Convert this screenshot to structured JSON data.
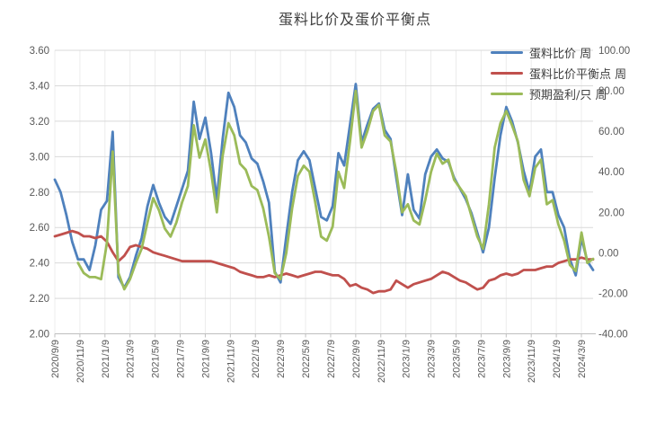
{
  "title": "蛋料比价及蛋价平衡点",
  "legend": [
    {
      "label": "蛋料比价 周",
      "color": "#4F81BD"
    },
    {
      "label": "蛋料比价平衡点 周",
      "color": "#C0504D"
    },
    {
      "label": "预期盈利/只 周",
      "color": "#9BBB59"
    }
  ],
  "colors": {
    "series_ratio": "#4F81BD",
    "series_breakeven": "#C0504D",
    "series_profit": "#9BBB59",
    "gridline": "#D9D9D9",
    "vertical_gridline": "#ECECEC",
    "axis_line": "#BFBFBF",
    "axis_text": "#595959",
    "title_text": "#3F3F3F"
  },
  "chart_data": {
    "type": "line",
    "title": "蛋料比价及蛋价平衡点",
    "x_tick_labels": [
      "2020/9/9",
      "2020/11/9",
      "2021/1/9",
      "2021/3/9",
      "2021/5/9",
      "2021/7/9",
      "2021/9/9",
      "2021/11/9",
      "2022/1/9",
      "2022/3/9",
      "2022/5/9",
      "2022/7/9",
      "2022/9/9",
      "2022/11/9",
      "2023/1/9",
      "2023/3/9",
      "2023/5/9",
      "2023/7/9",
      "2023/9/9",
      "2023/11/9",
      "2024/1/9",
      "2024/3/9"
    ],
    "left_axis": {
      "min": 2.0,
      "max": 3.6,
      "tick_labels": [
        "3.60",
        "3.40",
        "3.20",
        "3.00",
        "2.80",
        "2.60",
        "2.40",
        "2.20",
        "2.00"
      ]
    },
    "right_axis": {
      "min": -40,
      "max": 100,
      "tick_labels": [
        "100.00",
        "80.00",
        "60.00",
        "40.00",
        "20.00",
        "0.00",
        "-20.00",
        "-40.00"
      ]
    },
    "grid": true,
    "legend_position": "top-right",
    "sampling": "weekly series shown, digitized at ~2-week steps from 2020/9/9 to 2024/4",
    "series": [
      {
        "name": "蛋料比价 周",
        "axis": "left",
        "color": "#4F81BD",
        "values": [
          2.87,
          2.8,
          2.67,
          2.52,
          2.42,
          2.42,
          2.36,
          2.5,
          2.7,
          2.75,
          3.14,
          2.32,
          2.26,
          2.32,
          2.44,
          2.54,
          2.72,
          2.84,
          2.74,
          2.66,
          2.62,
          2.72,
          2.82,
          2.92,
          3.31,
          3.1,
          3.22,
          3.02,
          2.76,
          3.1,
          3.36,
          3.28,
          3.12,
          3.08,
          2.99,
          2.96,
          2.86,
          2.74,
          2.35,
          2.29,
          2.55,
          2.8,
          2.98,
          3.03,
          2.98,
          2.82,
          2.66,
          2.64,
          2.72,
          3.02,
          2.95,
          3.18,
          3.41,
          3.08,
          3.18,
          3.27,
          3.3,
          3.15,
          3.1,
          2.88,
          2.67,
          2.9,
          2.7,
          2.65,
          2.9,
          3.0,
          3.04,
          2.99,
          2.97,
          2.88,
          2.82,
          2.76,
          2.68,
          2.57,
          2.46,
          2.6,
          2.88,
          3.12,
          3.28,
          3.2,
          3.08,
          2.92,
          2.8,
          3.0,
          3.04,
          2.8,
          2.8,
          2.67,
          2.6,
          2.42,
          2.33,
          2.54,
          2.41,
          2.36
        ]
      },
      {
        "name": "蛋料比价平衡点 周",
        "axis": "left",
        "color": "#C0504D",
        "values": [
          2.55,
          2.56,
          2.57,
          2.58,
          2.57,
          2.55,
          2.55,
          2.54,
          2.55,
          2.52,
          2.46,
          2.41,
          2.44,
          2.49,
          2.5,
          2.49,
          2.48,
          2.46,
          2.45,
          2.44,
          2.43,
          2.42,
          2.41,
          2.41,
          2.41,
          2.41,
          2.41,
          2.41,
          2.4,
          2.39,
          2.38,
          2.37,
          2.35,
          2.34,
          2.33,
          2.32,
          2.32,
          2.33,
          2.32,
          2.33,
          2.34,
          2.33,
          2.32,
          2.33,
          2.34,
          2.35,
          2.35,
          2.34,
          2.33,
          2.33,
          2.31,
          2.27,
          2.28,
          2.26,
          2.25,
          2.23,
          2.24,
          2.24,
          2.25,
          2.3,
          2.28,
          2.26,
          2.28,
          2.29,
          2.3,
          2.31,
          2.33,
          2.35,
          2.34,
          2.32,
          2.3,
          2.29,
          2.27,
          2.25,
          2.26,
          2.3,
          2.31,
          2.33,
          2.34,
          2.33,
          2.34,
          2.36,
          2.36,
          2.36,
          2.37,
          2.38,
          2.38,
          2.4,
          2.41,
          2.42,
          2.42,
          2.43,
          2.42,
          2.42
        ]
      },
      {
        "name": "预期盈利/只 周",
        "axis": "right",
        "color": "#9BBB59",
        "values": [
          null,
          null,
          null,
          null,
          -5,
          -10,
          -12,
          -12,
          -13,
          5,
          50,
          -10,
          -18,
          -13,
          -5,
          2,
          15,
          27,
          21,
          12,
          8,
          15,
          25,
          33,
          63,
          47,
          56,
          40,
          20,
          48,
          64,
          58,
          44,
          41,
          33,
          31,
          22,
          8,
          -10,
          -13,
          0,
          22,
          38,
          43,
          40,
          25,
          8,
          6,
          13,
          40,
          32,
          55,
          80,
          52,
          60,
          70,
          73,
          58,
          55,
          40,
          20,
          24,
          16,
          14,
          26,
          40,
          49,
          44,
          46,
          36,
          32,
          28,
          18,
          8,
          2,
          24,
          52,
          64,
          70,
          63,
          55,
          36,
          28,
          42,
          46,
          24,
          26,
          14,
          6,
          -6,
          -9,
          10,
          -5,
          -3
        ]
      }
    ]
  }
}
